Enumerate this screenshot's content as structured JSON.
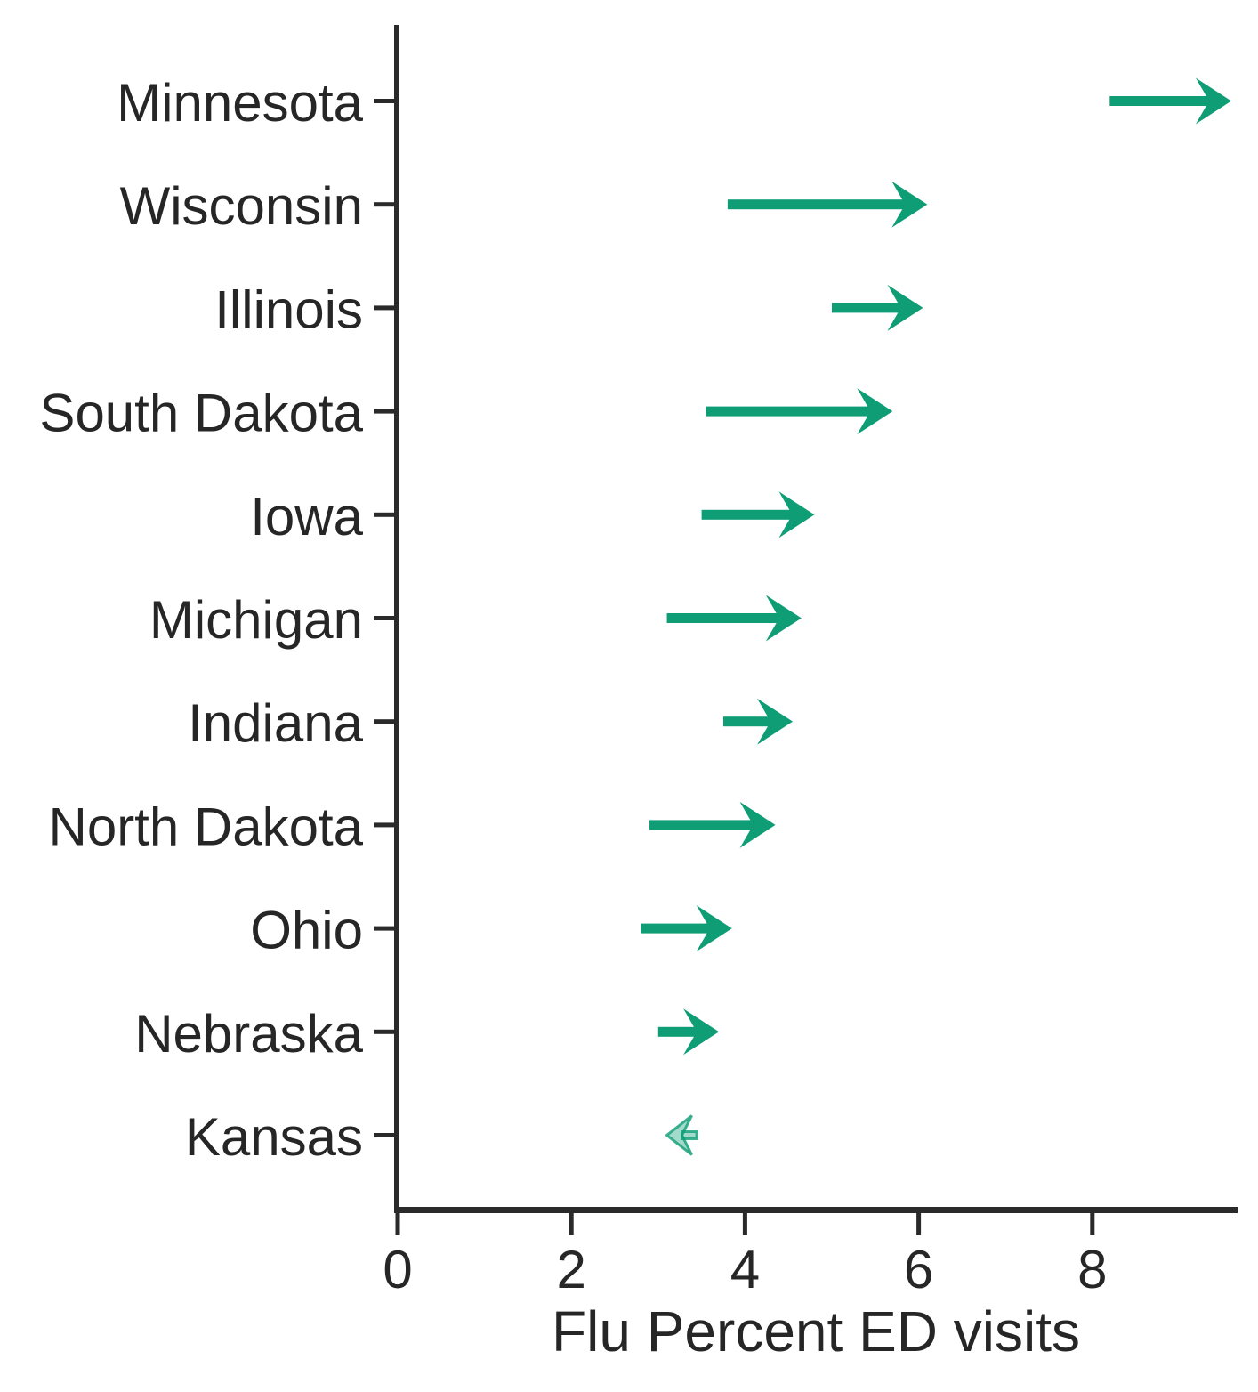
{
  "chart_data": {
    "type": "arrow",
    "orientation": "horizontal",
    "title": "",
    "xlabel": "Flu Percent ED visits",
    "ylabel": "",
    "grid": false,
    "legend": false,
    "xlim": [
      0,
      9.67
    ],
    "xticks": [
      0,
      2,
      4,
      6,
      8
    ],
    "xtick_labels": [
      "0",
      "2",
      "4",
      "6",
      "8"
    ],
    "categories": [
      "Minnesota",
      "Wisconsin",
      "Illinois",
      "South Dakota",
      "Iowa",
      "Michigan",
      "Indiana",
      "North Dakota",
      "Ohio",
      "Nebraska",
      "Kansas"
    ],
    "series": [
      {
        "name": "start",
        "values": [
          8.2,
          3.8,
          5.0,
          3.55,
          3.5,
          3.1,
          3.75,
          2.9,
          2.8,
          3.0,
          3.3
        ]
      },
      {
        "name": "end",
        "values": [
          9.6,
          6.1,
          6.05,
          5.7,
          4.8,
          4.65,
          4.55,
          4.35,
          3.85,
          3.7,
          3.1
        ]
      }
    ],
    "faded_categories": [
      "Kansas"
    ],
    "colors": {
      "arrow": "#0f9d75",
      "faded_arrow": "#0f9d75",
      "axis": "#2a2a2a",
      "text": "#262626"
    },
    "faded_opacity": 0.38
  }
}
